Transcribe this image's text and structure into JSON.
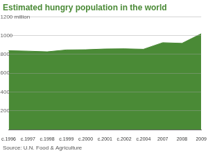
{
  "chart_data": {
    "type": "area",
    "title": "Estimated hungry population in the world",
    "source": "Source: U.N. Food & Agriculture",
    "categories": [
      "c.1996",
      "c.1997",
      "c.1998",
      "c.1999",
      "c.2000",
      "c.2001",
      "c.2002",
      "c.2004",
      "2007",
      "2008",
      "2009"
    ],
    "values": [
      840,
      835,
      828,
      848,
      850,
      858,
      860,
      855,
      925,
      918,
      1020
    ],
    "color": "#4a8a36",
    "ylim": [
      0,
      1200
    ],
    "yticks": [
      200,
      400,
      600,
      800,
      1000,
      {
        "value": 1200,
        "label": "1200 million"
      }
    ],
    "grid": true
  }
}
